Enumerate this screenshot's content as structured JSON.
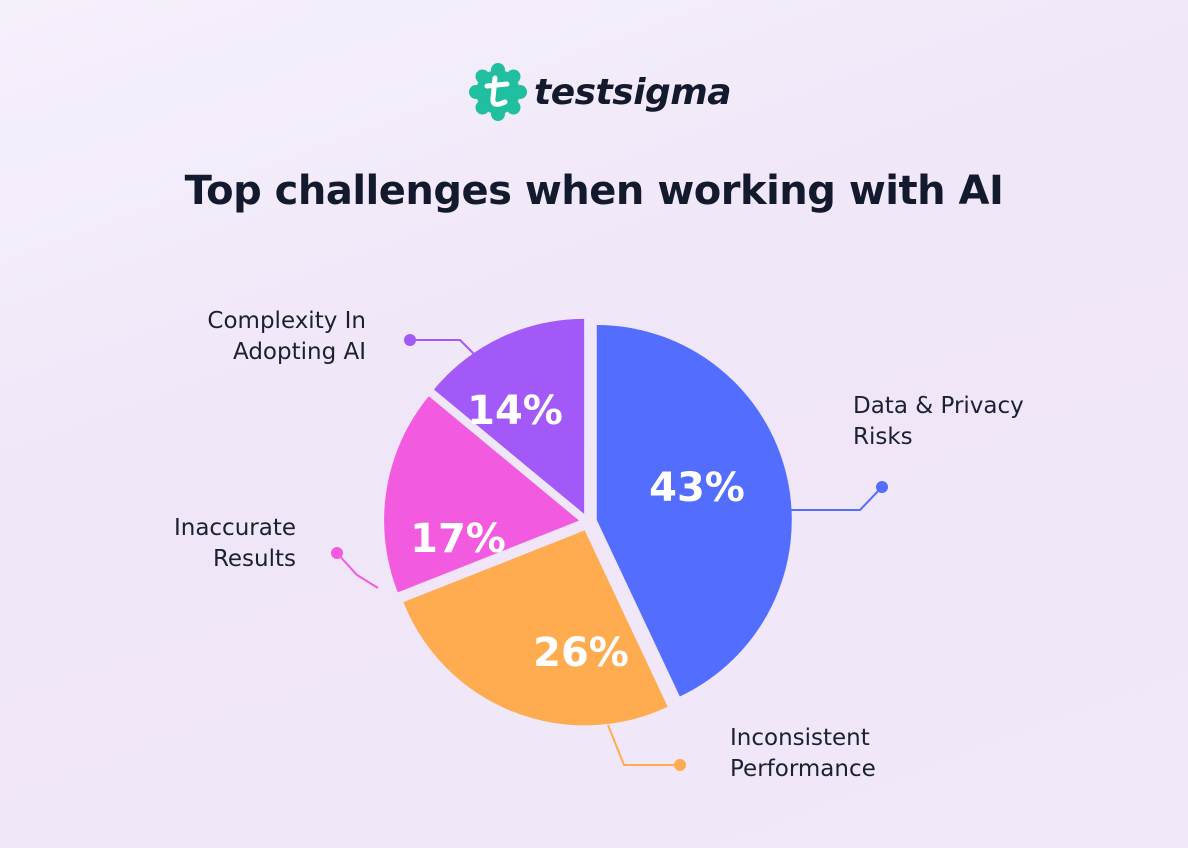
{
  "logo": "testsigma",
  "chart_data": {
    "type": "pie",
    "title": "Top challenges when working with AI",
    "categories": [
      "Data & Privacy Risks",
      "Inconsistent Performance",
      "Inaccurate Results",
      "Complexity In Adopting AI"
    ],
    "values": [
      43,
      26,
      17,
      14
    ],
    "value_labels": [
      "43%",
      "26%",
      "17%",
      "14%"
    ],
    "colors": [
      "#536dfe",
      "#ffab4f",
      "#f25ae0",
      "#a259f7"
    ]
  }
}
